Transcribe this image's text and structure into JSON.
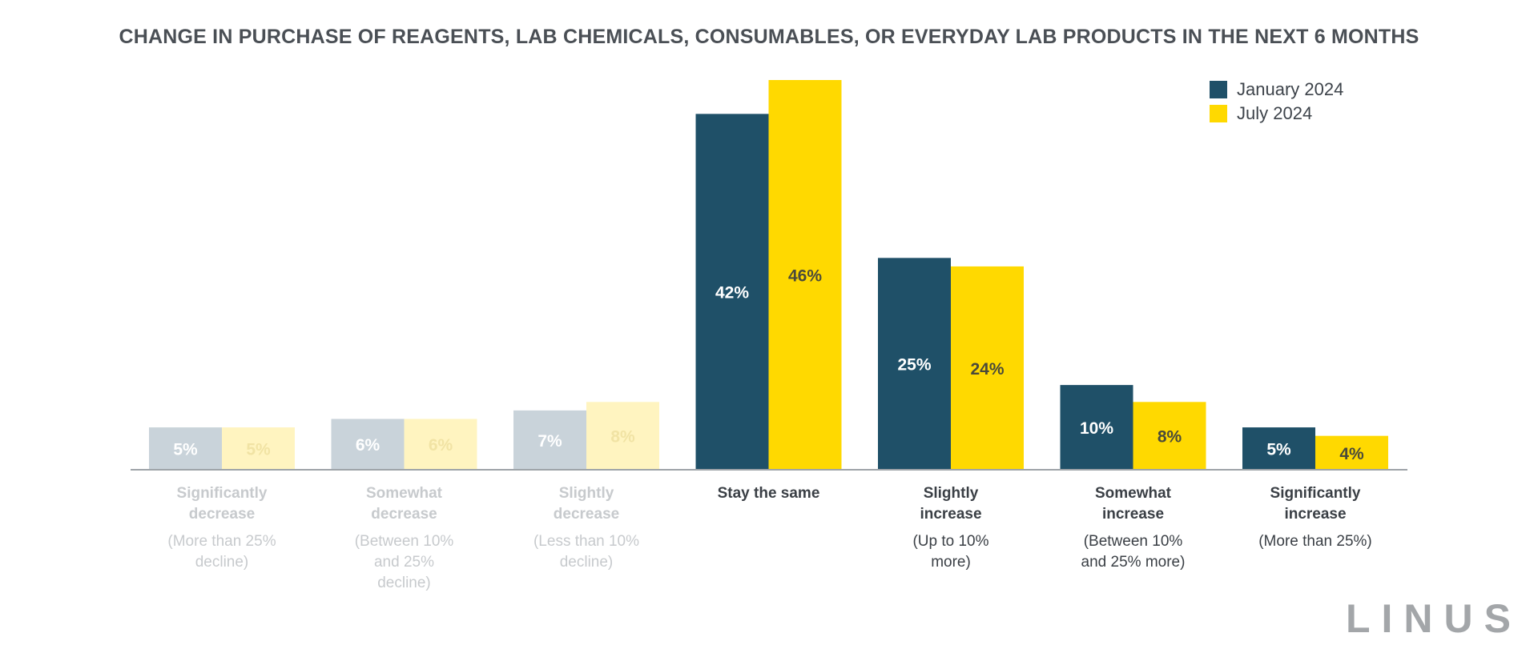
{
  "title": "CHANGE IN PURCHASE OF REAGENTS, LAB CHEMICALS, CONSUMABLES, OR EVERYDAY LAB PRODUCTS IN THE NEXT 6 MONTHS",
  "brand": "LINUS",
  "colors": {
    "january": "#1f5068",
    "july": "#ffd900",
    "january_faded": "#c9d3da",
    "july_faded": "#fff4c0",
    "baseline": "#9ea3a8",
    "label_strong": "#3a3f45",
    "label_faded": "#c7cacd"
  },
  "chart_data": {
    "type": "bar",
    "title": "CHANGE IN PURCHASE OF REAGENTS, LAB CHEMICALS, CONSUMABLES, OR EVERYDAY LAB PRODUCTS IN THE NEXT 6 MONTHS",
    "legend_position": "top-right",
    "grid": false,
    "ylim": [
      0,
      46
    ],
    "categories": [
      {
        "label": [
          "Significantly",
          "decrease"
        ],
        "sub": [
          "(More than 25%",
          "decline)"
        ],
        "faded": true
      },
      {
        "label": [
          "Somewhat",
          "decrease"
        ],
        "sub": [
          "(Between 10%",
          "and 25%",
          "decline)"
        ],
        "faded": true
      },
      {
        "label": [
          "Slightly",
          "decrease"
        ],
        "sub": [
          "(Less than 10%",
          "decline)"
        ],
        "faded": true
      },
      {
        "label": [
          "Stay the same"
        ],
        "sub": [],
        "faded": false
      },
      {
        "label": [
          "Slightly",
          "increase"
        ],
        "sub": [
          "(Up to 10%",
          "more)"
        ],
        "faded": false
      },
      {
        "label": [
          "Somewhat",
          "increase"
        ],
        "sub": [
          "(Between 10%",
          "and 25% more)"
        ],
        "faded": false
      },
      {
        "label": [
          "Significantly",
          "increase"
        ],
        "sub": [
          "(More than 25%)"
        ],
        "faded": false
      }
    ],
    "series": [
      {
        "name": "January 2024",
        "values": [
          5,
          6,
          7,
          42,
          25,
          10,
          5
        ],
        "labels": [
          "5%",
          "6%",
          "7%",
          "42%",
          "25%",
          "10%",
          "5%"
        ]
      },
      {
        "name": "July 2024",
        "values": [
          5,
          6,
          8,
          46,
          24,
          8,
          4
        ],
        "labels": [
          "5%",
          "6%",
          "8%",
          "46%",
          "24%",
          "8%",
          "4%"
        ]
      }
    ]
  }
}
